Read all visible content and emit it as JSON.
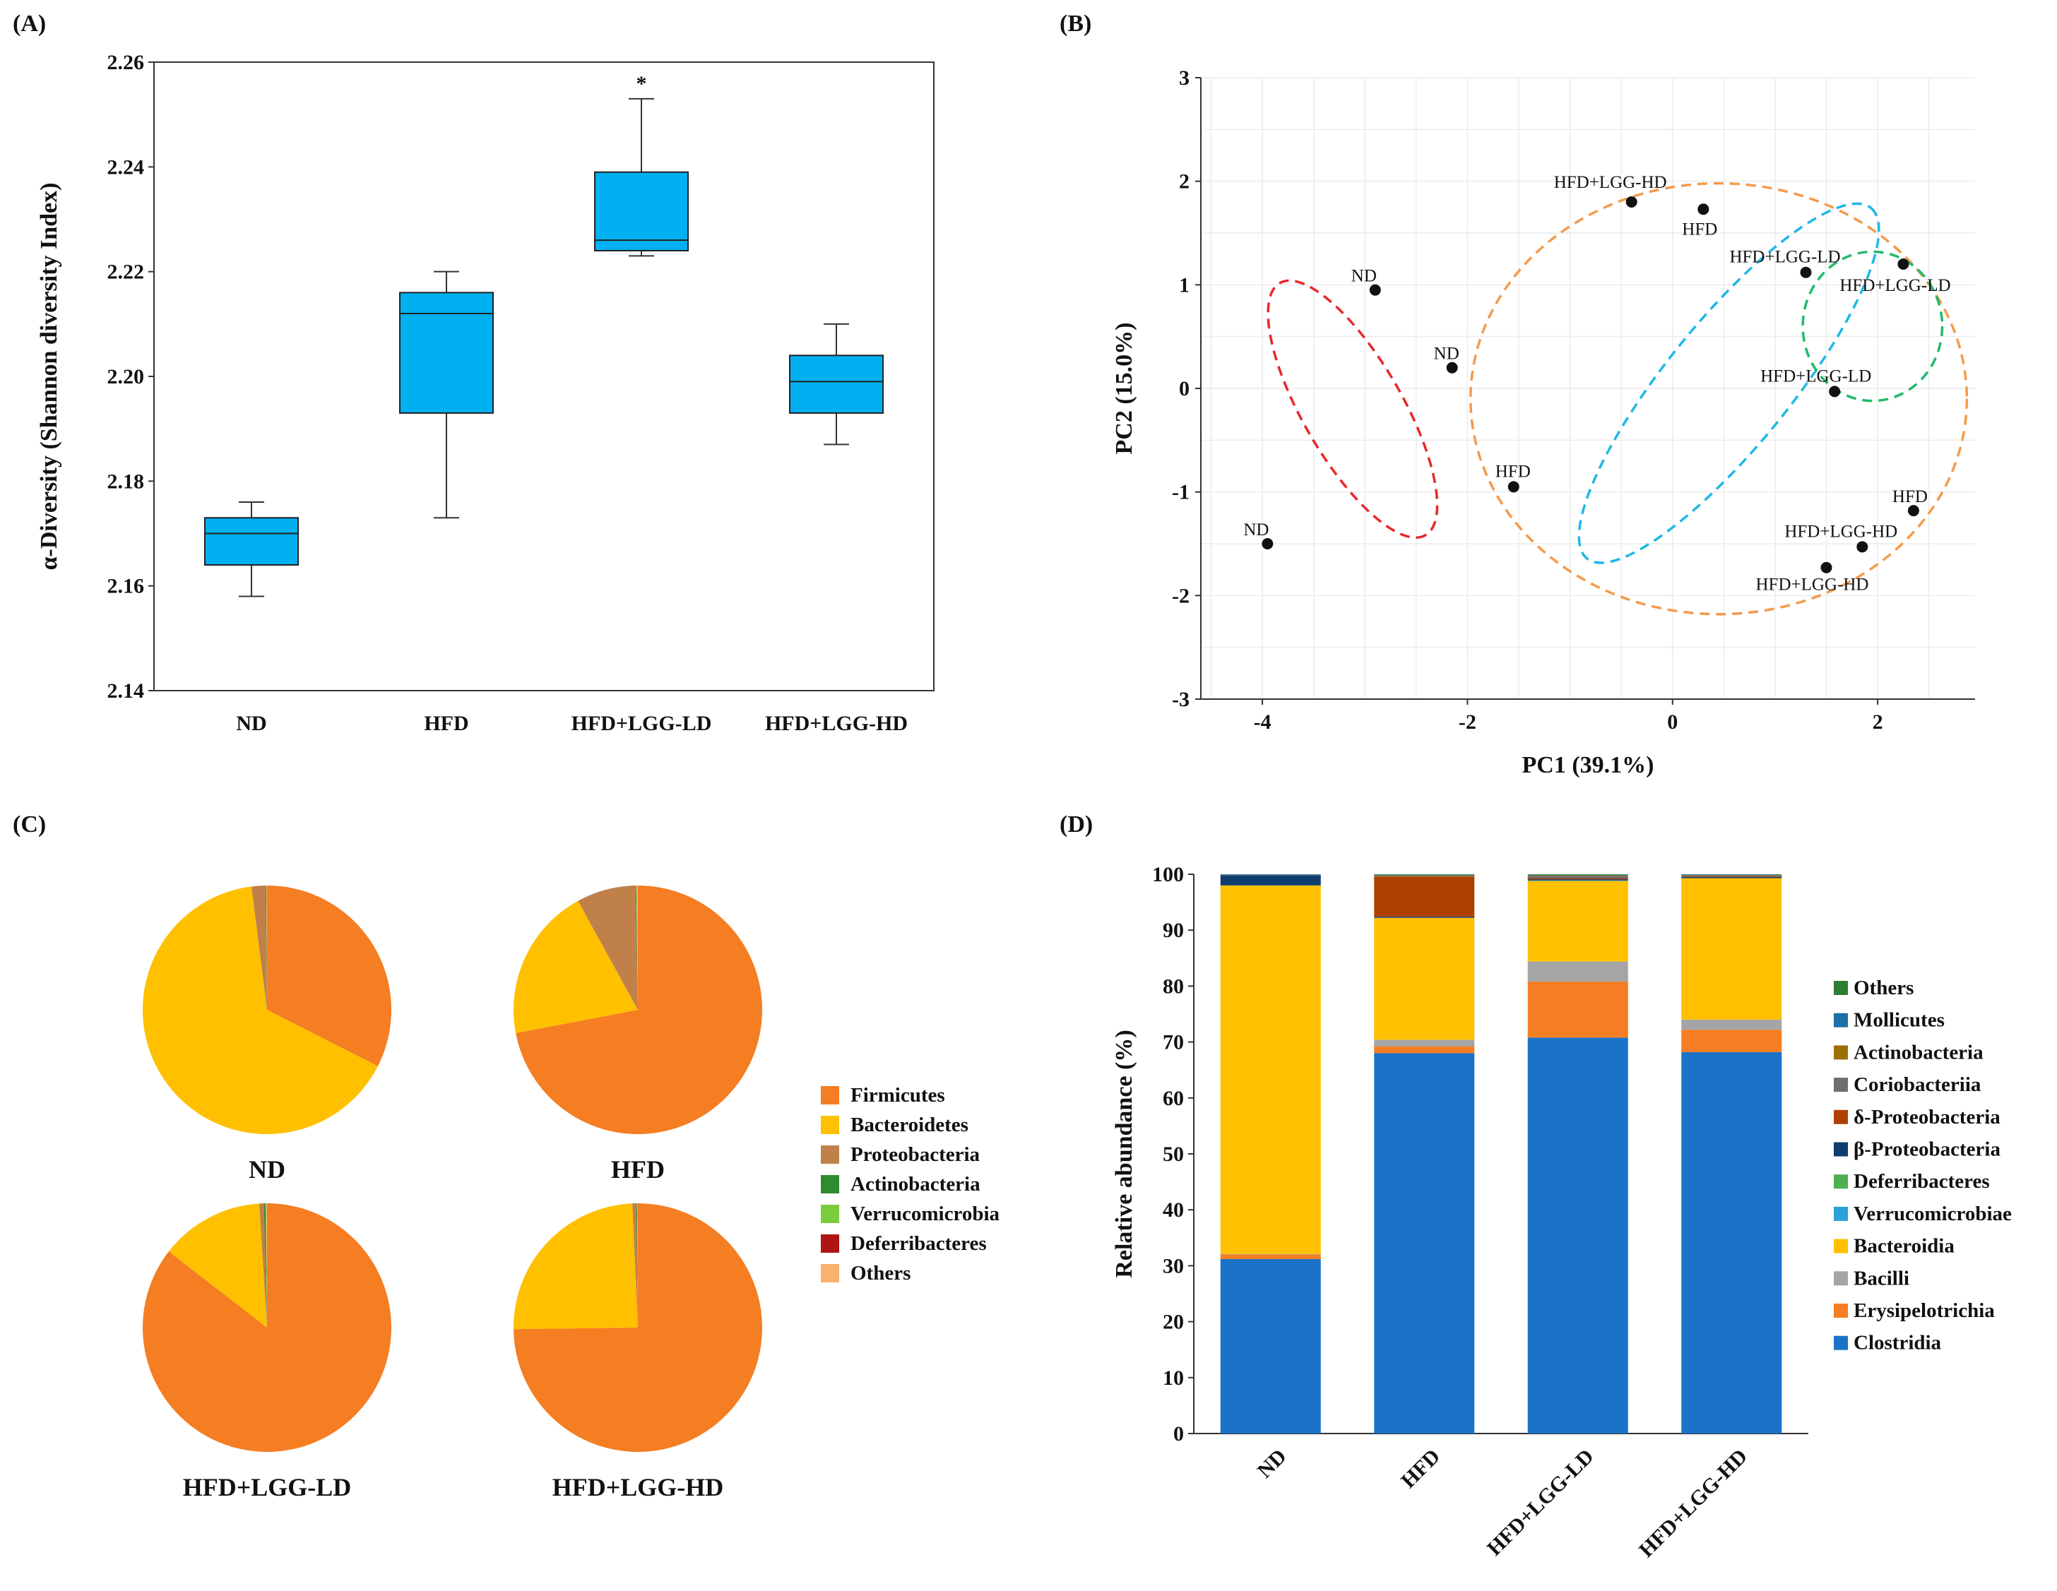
{
  "panel_labels": [
    "(A)",
    "(B)",
    "(C)",
    "(D)"
  ],
  "chart_data": [
    {
      "type": "box",
      "panel": "(A)",
      "ylabel": "α-Diversity (Shannon diversity Index)",
      "xlabel": "",
      "ylim": [
        2.14,
        2.26
      ],
      "yticks": [
        "2.14",
        "2.16",
        "2.18",
        "2.20",
        "2.22",
        "2.24",
        "2.26"
      ],
      "categories": [
        "ND",
        "HFD",
        "HFD+LGG-LD",
        "HFD+LGG-HD"
      ],
      "boxes": [
        {
          "min": 2.158,
          "q1": 2.164,
          "median": 2.17,
          "q3": 2.173,
          "max": 2.176
        },
        {
          "min": 2.173,
          "q1": 2.193,
          "median": 2.212,
          "q3": 2.216,
          "max": 2.22
        },
        {
          "min": 2.223,
          "q1": 2.224,
          "median": 2.226,
          "q3": 2.239,
          "max": 2.253
        },
        {
          "min": 2.187,
          "q1": 2.193,
          "median": 2.199,
          "q3": 2.204,
          "max": 2.21
        }
      ],
      "annotations": [
        {
          "category": "HFD+LGG-LD",
          "text": "*"
        }
      ],
      "color": "#00B0F0"
    },
    {
      "type": "scatter",
      "panel": "(B)",
      "xlabel": "PC1 (39.1%)",
      "ylabel": "PC2 (15.0%)",
      "xlim": [
        -4.6,
        2.95
      ],
      "ylim": [
        -3,
        3
      ],
      "xticks": [
        "-4",
        "-2",
        "0",
        "2"
      ],
      "yticks": [
        "-3",
        "-2",
        "-1",
        "0",
        "1",
        "2",
        "3"
      ],
      "points": [
        {
          "label": "ND",
          "x": -3.95,
          "y": -1.5
        },
        {
          "label": "ND",
          "x": -2.9,
          "y": 0.95
        },
        {
          "label": "ND",
          "x": -2.15,
          "y": 0.2
        },
        {
          "label": "HFD",
          "x": -1.55,
          "y": -0.95
        },
        {
          "label": "HFD",
          "x": 0.3,
          "y": 1.73
        },
        {
          "label": "HFD",
          "x": 2.35,
          "y": -1.18
        },
        {
          "label": "HFD+LGG-HD",
          "x": -0.4,
          "y": 1.8
        },
        {
          "label": "HFD+LGG-HD",
          "x": 1.5,
          "y": -1.73
        },
        {
          "label": "HFD+LGG-HD",
          "x": 1.85,
          "y": -1.53
        },
        {
          "label": "HFD+LGG-LD",
          "x": 1.3,
          "y": 1.12
        },
        {
          "label": "HFD+LGG-LD",
          "x": 2.25,
          "y": 1.2
        },
        {
          "label": "HFD+LGG-LD",
          "x": 1.58,
          "y": -0.03
        }
      ],
      "ellipse_groups": [
        {
          "group": "ND",
          "color": "#E8282B"
        },
        {
          "group": "HFD",
          "color": "#F59A4B"
        },
        {
          "group": "HFD+LGG-HD",
          "color": "#1FB8E6"
        },
        {
          "group": "HFD+LGG-LD",
          "color": "#22B96B"
        }
      ]
    },
    {
      "type": "pie",
      "panel": "(C)",
      "legend": [
        "Firmicutes",
        "Bacteroidetes",
        "Proteobacteria",
        "Actinobacteria",
        "Verrucomicrobia",
        "Deferribacteres",
        "Others"
      ],
      "colors": [
        "#F57D22",
        "#FFC000",
        "#C0804A",
        "#2E8B2E",
        "#7ACB3D",
        "#B01414",
        "#F9B16E"
      ],
      "pies": [
        {
          "name": "ND",
          "values": [
            32.5,
            65.5,
            1.8,
            0.1,
            0.0,
            0.0,
            0.1
          ]
        },
        {
          "name": "HFD",
          "values": [
            72.0,
            20.0,
            7.7,
            0.1,
            0.0,
            0.0,
            0.2
          ]
        },
        {
          "name": "HFD+LGG-LD",
          "values": [
            85.5,
            13.5,
            0.6,
            0.2,
            0.1,
            0.0,
            0.1
          ]
        },
        {
          "name": "HFD+LGG-HD",
          "values": [
            74.8,
            24.5,
            0.5,
            0.1,
            0.0,
            0.0,
            0.1
          ]
        }
      ]
    },
    {
      "type": "stacked_bar",
      "panel": "(D)",
      "ylabel": "Relative abundance (%)",
      "ylim": [
        0,
        100
      ],
      "yticks": [
        "0",
        "10",
        "20",
        "30",
        "40",
        "50",
        "60",
        "70",
        "80",
        "90",
        "100"
      ],
      "categories": [
        "ND",
        "HFD",
        "HFD+LGG-LD",
        "HFD+LGG-HD"
      ],
      "series": [
        {
          "name": "Clostridia",
          "color": "#1B73C7",
          "values": [
            31.2,
            68.0,
            70.8,
            68.2
          ]
        },
        {
          "name": "Erysipelotrichia",
          "color": "#F57D22",
          "values": [
            0.8,
            1.2,
            10.0,
            4.0
          ]
        },
        {
          "name": "Bacilli",
          "color": "#A5A5A5",
          "values": [
            0.1,
            1.2,
            3.6,
            1.8
          ]
        },
        {
          "name": "Bacteroidia",
          "color": "#FFC000",
          "values": [
            65.9,
            21.8,
            14.4,
            25.3
          ]
        },
        {
          "name": "Verrucomicrobiae",
          "color": "#2CA0D8",
          "values": [
            0.0,
            0.0,
            0.1,
            0.0
          ]
        },
        {
          "name": "Deferribacteres",
          "color": "#4CAF50",
          "values": [
            0.0,
            0.0,
            0.0,
            0.0
          ]
        },
        {
          "name": "β-Proteobacteria",
          "color": "#0E3D6E",
          "values": [
            1.8,
            0.2,
            0.2,
            0.2
          ]
        },
        {
          "name": "δ-Proteobacteria",
          "color": "#B04000",
          "values": [
            0.0,
            7.2,
            0.2,
            0.1
          ]
        },
        {
          "name": "Coriobacteriia",
          "color": "#6E6E6E",
          "values": [
            0.1,
            0.1,
            0.4,
            0.2
          ]
        },
        {
          "name": "Actinobacteria",
          "color": "#9C7000",
          "values": [
            0.0,
            0.1,
            0.1,
            0.1
          ]
        },
        {
          "name": "Mollicutes",
          "color": "#1F6FA8",
          "values": [
            0.1,
            0.1,
            0.1,
            0.1
          ]
        },
        {
          "name": "Others",
          "color": "#2E7D32",
          "values": [
            0.0,
            0.1,
            0.1,
            0.0
          ]
        }
      ],
      "legend_order": [
        "Others",
        "Mollicutes",
        "Actinobacteria",
        "Coriobacteriia",
        "δ-Proteobacteria",
        "β-Proteobacteria",
        "Deferribacteres",
        "Verrucomicrobiae",
        "Bacteroidia",
        "Bacilli",
        "Erysipelotrichia",
        "Clostridia"
      ]
    }
  ]
}
